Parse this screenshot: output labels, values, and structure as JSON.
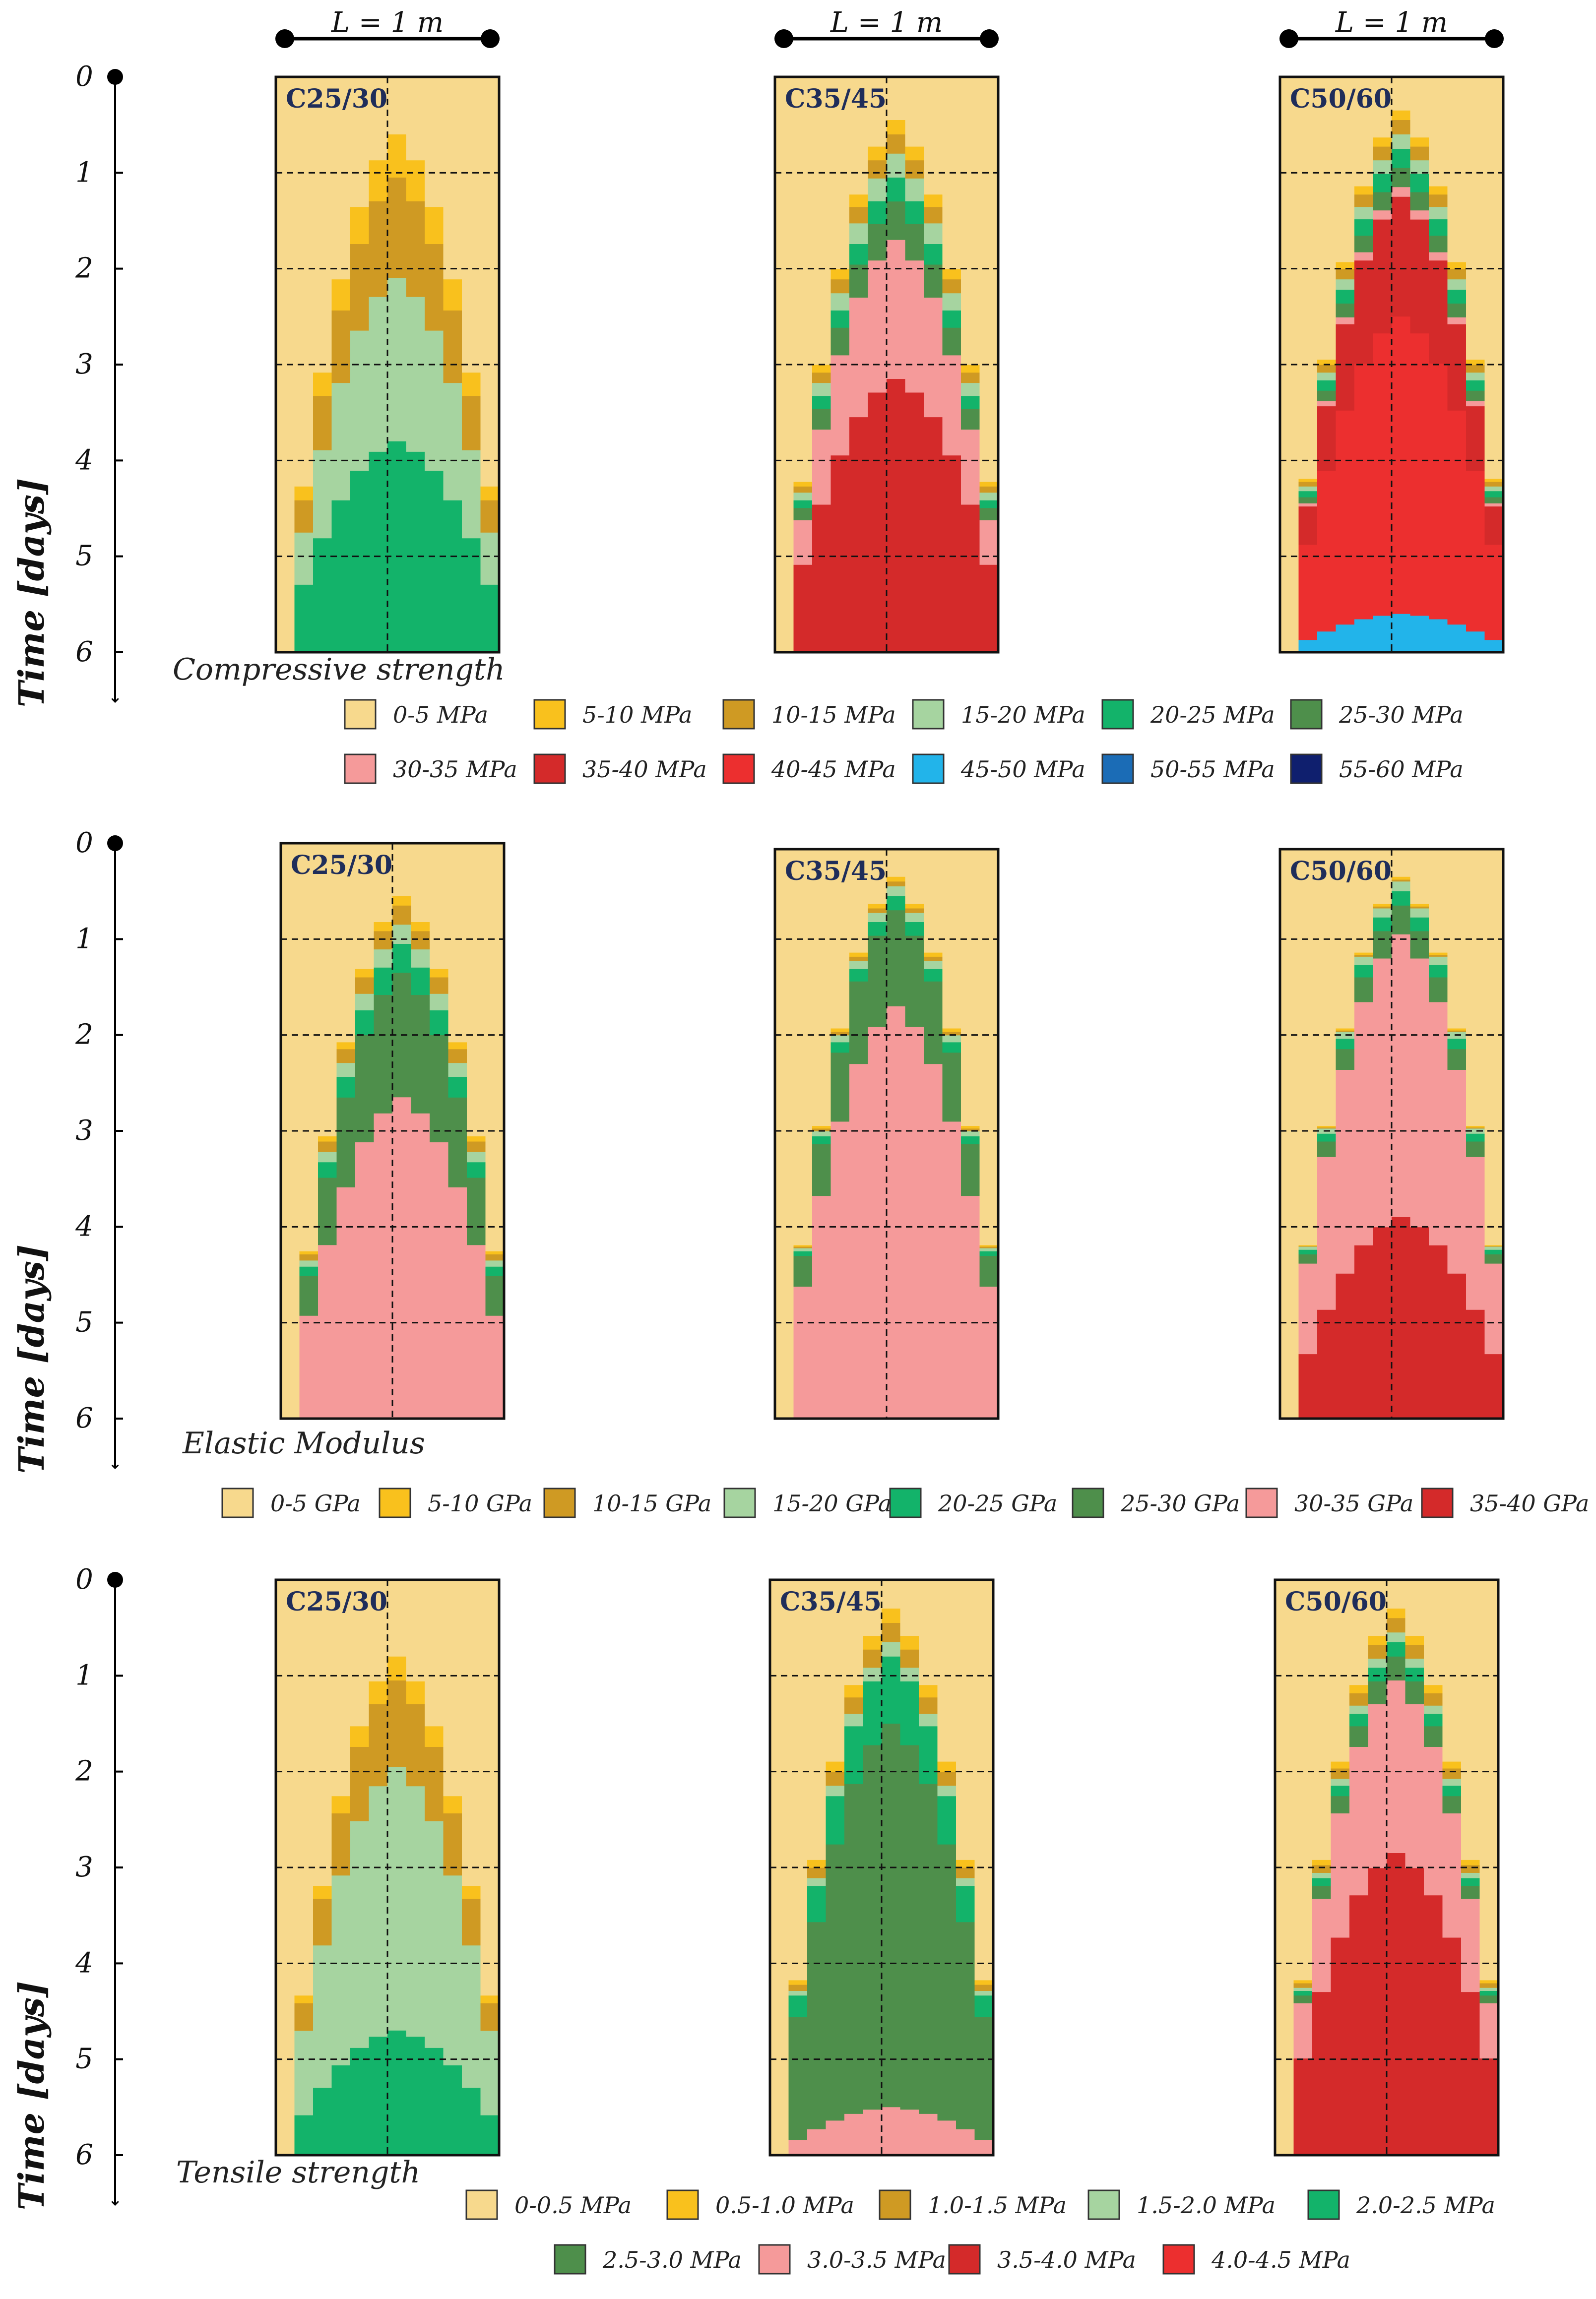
{
  "chart_data": [
    {
      "type": "heatmap",
      "title": "Compressive strength",
      "ylabel": "Time [days]",
      "yticks": [
        "0",
        "1",
        "2",
        "3",
        "4",
        "5",
        "6"
      ],
      "ylim": [
        0,
        6
      ],
      "xlabel": "L = 1 m",
      "grades": [
        "C25/30",
        "C35/45",
        "C50/60"
      ],
      "legend": [
        {
          "label": "0-5 MPa",
          "color": "#f7d98d"
        },
        {
          "label": "5-10 MPa",
          "color": "#f9c11d"
        },
        {
          "label": "10-15 MPa",
          "color": "#cf9a23"
        },
        {
          "label": "15-20 MPa",
          "color": "#a6d4a0"
        },
        {
          "label": "20-25 MPa",
          "color": "#13b36a"
        },
        {
          "label": "25-30 MPa",
          "color": "#4e8f4b"
        },
        {
          "label": "30-35 MPa",
          "color": "#f59a9a"
        },
        {
          "label": "35-40 MPa",
          "color": "#d42a2a"
        },
        {
          "label": "40-45 MPa",
          "color": "#ec2f2f"
        },
        {
          "label": "45-50 MPa",
          "color": "#22b4ea"
        },
        {
          "label": "50-55 MPa",
          "color": "#1b6cb6"
        },
        {
          "label": "55-60 MPa",
          "color": "#0f1f6e"
        }
      ],
      "panels": [
        {
          "grade": "C25/30",
          "onset_days": [
            0.6,
            1.05,
            2.1,
            3.8
          ]
        },
        {
          "grade": "C35/45",
          "onset_days": [
            0.45,
            0.6,
            0.8,
            1.05,
            1.3,
            1.7,
            3.15
          ]
        },
        {
          "grade": "C50/60",
          "onset_days": [
            0.35,
            0.45,
            0.6,
            0.75,
            0.95,
            1.15,
            1.25,
            2.5,
            5.6
          ]
        }
      ]
    },
    {
      "type": "heatmap",
      "title": "Elastic Modulus",
      "ylabel": "Time [days]",
      "yticks": [
        "0",
        "1",
        "2",
        "3",
        "4",
        "5",
        "6"
      ],
      "ylim": [
        0,
        6
      ],
      "grades": [
        "C25/30",
        "C35/45",
        "C50/60"
      ],
      "legend": [
        {
          "label": "0-5 GPa",
          "color": "#f7d98d"
        },
        {
          "label": "5-10 GPa",
          "color": "#f9c11d"
        },
        {
          "label": "10-15 GPa",
          "color": "#cf9a23"
        },
        {
          "label": "15-20 GPa",
          "color": "#a6d4a0"
        },
        {
          "label": "20-25 GPa",
          "color": "#13b36a"
        },
        {
          "label": "25-30 GPa",
          "color": "#4e8f4b"
        },
        {
          "label": "30-35 GPa",
          "color": "#f59a9a"
        },
        {
          "label": "35-40 GPa",
          "color": "#d42a2a"
        }
      ],
      "panels": [
        {
          "grade": "C25/30",
          "onset_days": [
            0.55,
            0.65,
            0.85,
            1.05,
            1.35,
            2.65
          ]
        },
        {
          "grade": "C35/45",
          "onset_days": [
            0.35,
            0.4,
            0.45,
            0.55,
            0.7,
            1.7
          ]
        },
        {
          "grade": "C50/60",
          "onset_days": [
            0.35,
            0.38,
            0.4,
            0.5,
            0.65,
            0.95,
            3.9
          ]
        }
      ]
    },
    {
      "type": "heatmap",
      "title": "Tensile strength",
      "ylabel": "Time [days]",
      "yticks": [
        "0",
        "1",
        "2",
        "3",
        "4",
        "5",
        "6"
      ],
      "ylim": [
        0,
        6
      ],
      "grades": [
        "C25/30",
        "C35/45",
        "C50/60"
      ],
      "legend": [
        {
          "label": "0-0.5 MPa",
          "color": "#f7d98d"
        },
        {
          "label": "0.5-1.0 MPa",
          "color": "#f9c11d"
        },
        {
          "label": "1.0-1.5 MPa",
          "color": "#cf9a23"
        },
        {
          "label": "1.5-2.0 MPa",
          "color": "#a6d4a0"
        },
        {
          "label": "2.0-2.5 MPa",
          "color": "#13b36a"
        },
        {
          "label": "2.5-3.0 MPa",
          "color": "#4e8f4b"
        },
        {
          "label": "3.0-3.5 MPa",
          "color": "#f59a9a"
        },
        {
          "label": "3.5-4.0 MPa",
          "color": "#d42a2a"
        },
        {
          "label": "4.0-4.5 MPa",
          "color": "#ec2f2f"
        }
      ],
      "panels": [
        {
          "grade": "C25/30",
          "onset_days": [
            0.8,
            1.05,
            1.95,
            4.7
          ]
        },
        {
          "grade": "C35/45",
          "onset_days": [
            0.3,
            0.45,
            0.65,
            0.8,
            1.5,
            5.5
          ]
        },
        {
          "grade": "C50/60",
          "onset_days": [
            0.3,
            0.4,
            0.55,
            0.65,
            0.8,
            1.05,
            2.85
          ]
        }
      ]
    }
  ]
}
